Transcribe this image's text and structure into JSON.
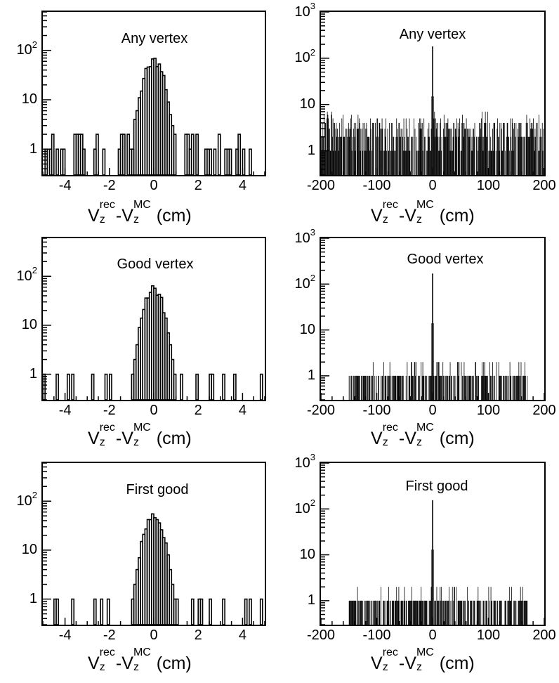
{
  "figure": {
    "xlabel": {
      "base": "V",
      "sub": "z",
      "sup1": "rec",
      "sup2": "MC",
      "unit": "(cm)"
    },
    "colors": {
      "hist": "#000000",
      "frame": "#000000",
      "background": "#ffffff"
    }
  },
  "chart_data": [
    {
      "type": "bar",
      "title": "Any vertex",
      "yscale": "log",
      "xlim": [
        -5,
        5
      ],
      "ylim": [
        0.3,
        600
      ],
      "xticks": [
        "-4",
        "-2",
        "0",
        "2",
        "4"
      ],
      "yticks": [
        {
          "value": 1,
          "base": "1",
          "exp": ""
        },
        {
          "value": 10,
          "base": "10",
          "exp": ""
        },
        {
          "value": 100,
          "base": "10",
          "exp": "2"
        }
      ],
      "bins": {
        "center_value": 0.0,
        "peak": 60,
        "width": 0.35,
        "tail_level": 1,
        "notes": "narrow Gaussian peak near 0 with sparse entries of 1-2 across full range"
      }
    },
    {
      "type": "bar",
      "title": "Any vertex",
      "yscale": "log",
      "xlim": [
        -200,
        200
      ],
      "ylim": [
        0.3,
        1000
      ],
      "xticks": [
        "-200",
        "-100",
        "0",
        "100",
        "200"
      ],
      "yticks": [
        {
          "value": 1,
          "base": "1",
          "exp": ""
        },
        {
          "value": 10,
          "base": "10",
          "exp": ""
        },
        {
          "value": 100,
          "base": "10",
          "exp": "2"
        },
        {
          "value": 1000,
          "base": "10",
          "exp": "3"
        }
      ],
      "bins": {
        "center_value": 0.0,
        "peak": 180,
        "tail_level": 3,
        "notes": "single spike at 0 over dense flat background of about 1-8 entries"
      }
    },
    {
      "type": "bar",
      "title": "Good vertex",
      "yscale": "log",
      "xlim": [
        -5,
        5
      ],
      "ylim": [
        0.3,
        600
      ],
      "xticks": [
        "-4",
        "-2",
        "0",
        "2",
        "4"
      ],
      "yticks": [
        {
          "value": 1,
          "base": "1",
          "exp": ""
        },
        {
          "value": 10,
          "base": "10",
          "exp": ""
        },
        {
          "value": 100,
          "base": "10",
          "exp": "2"
        }
      ],
      "bins": {
        "center_value": 0.0,
        "peak": 55,
        "width": 0.33,
        "tail_level": 1,
        "notes": "narrow Gaussian peak near 0 with sparse single entries"
      }
    },
    {
      "type": "bar",
      "title": "Good vertex",
      "yscale": "log",
      "xlim": [
        -200,
        200
      ],
      "ylim": [
        0.3,
        1000
      ],
      "xticks": [
        "-200",
        "-100",
        "0",
        "100",
        "200"
      ],
      "yticks": [
        {
          "value": 1,
          "base": "1",
          "exp": ""
        },
        {
          "value": 10,
          "base": "10",
          "exp": ""
        },
        {
          "value": 100,
          "base": "10",
          "exp": "2"
        },
        {
          "value": 1000,
          "base": "10",
          "exp": "3"
        }
      ],
      "bins": {
        "center_value": 0.0,
        "peak": 170,
        "tail_level": 1,
        "notes": "spike at 0; background of 1-2 entries between about -150 and 170"
      }
    },
    {
      "type": "bar",
      "title": "First good",
      "yscale": "log",
      "xlim": [
        -5,
        5
      ],
      "ylim": [
        0.3,
        600
      ],
      "xticks": [
        "-4",
        "-2",
        "0",
        "2",
        "4"
      ],
      "yticks": [
        {
          "value": 1,
          "base": "1",
          "exp": ""
        },
        {
          "value": 10,
          "base": "10",
          "exp": ""
        },
        {
          "value": 100,
          "base": "10",
          "exp": "2"
        }
      ],
      "bins": {
        "center_value": 0.0,
        "peak": 55,
        "width": 0.33,
        "tail_level": 1,
        "notes": "narrow Gaussian peak near 0 with sparse single entries"
      }
    },
    {
      "type": "bar",
      "title": "First good",
      "yscale": "log",
      "xlim": [
        -200,
        200
      ],
      "ylim": [
        0.3,
        1000
      ],
      "xticks": [
        "-200",
        "-100",
        "0",
        "100",
        "200"
      ],
      "yticks": [
        {
          "value": 1,
          "base": "1",
          "exp": ""
        },
        {
          "value": 10,
          "base": "10",
          "exp": ""
        },
        {
          "value": 100,
          "base": "10",
          "exp": "2"
        },
        {
          "value": 1000,
          "base": "10",
          "exp": "3"
        }
      ],
      "bins": {
        "center_value": 0.0,
        "peak": 155,
        "tail_level": 1,
        "notes": "spike at 0; background of 1-2 entries between about -150 and 170"
      }
    }
  ]
}
